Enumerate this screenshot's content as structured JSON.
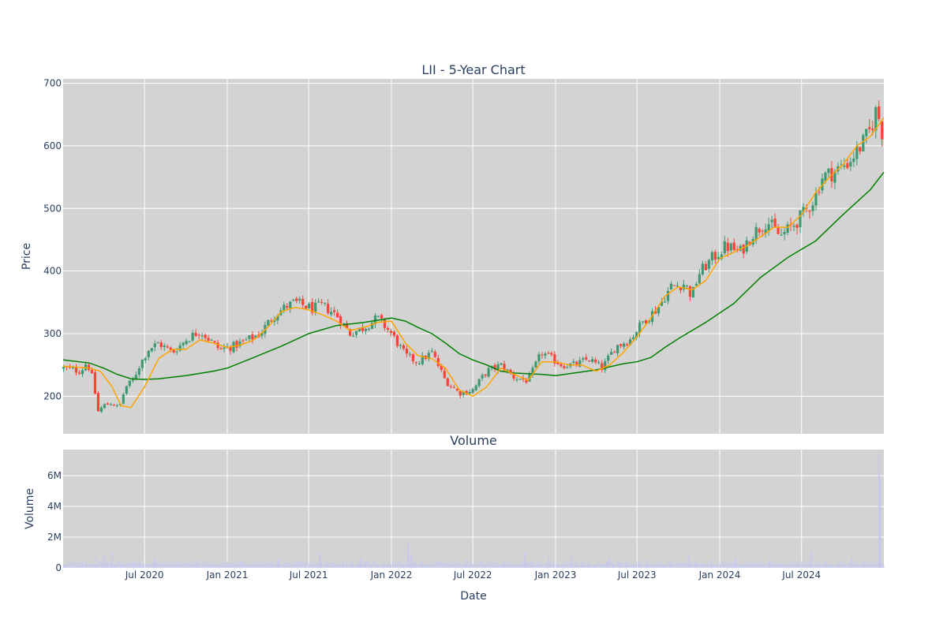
{
  "chart_data": [
    {
      "type": "candlestick",
      "title": "LII - 5-Year Chart",
      "ylabel": "Price",
      "ylim": [
        140,
        707
      ],
      "xlim": [
        "2020-01-02",
        "2024-12-31"
      ],
      "x_ticks": [
        "Jul 2020",
        "Jan 2021",
        "Jul 2021",
        "Jan 2022",
        "Jul 2022",
        "Jan 2023",
        "Jul 2023",
        "Jan 2024",
        "Jul 2024"
      ],
      "y_ticks": [
        200,
        300,
        400,
        500,
        600,
        700
      ],
      "grid": true,
      "colors": {
        "up": "#3d9970",
        "down": "#ff4136",
        "ma_short": "#ffa500",
        "ma_long": "#008000",
        "plot_bg": "#d3d3d3"
      },
      "close_path": {
        "dates": [
          "2020-01-02",
          "2020-02-10",
          "2020-02-24",
          "2020-03-09",
          "2020-03-19",
          "2020-04-01",
          "2020-04-20",
          "2020-05-05",
          "2020-05-20",
          "2020-06-05",
          "2020-06-20",
          "2020-07-10",
          "2020-08-01",
          "2020-09-01",
          "2020-10-01",
          "2020-11-01",
          "2020-12-15",
          "2021-01-15",
          "2021-02-15",
          "2021-03-15",
          "2021-04-15",
          "2021-05-15",
          "2021-06-01",
          "2021-06-20",
          "2021-07-10",
          "2021-08-01",
          "2021-09-01",
          "2021-10-01",
          "2021-11-01",
          "2021-12-01",
          "2022-01-01",
          "2022-02-01",
          "2022-03-01",
          "2022-04-01",
          "2022-05-01",
          "2022-06-01",
          "2022-07-01",
          "2022-08-01",
          "2022-09-01",
          "2022-10-01",
          "2022-11-01",
          "2022-12-01",
          "2023-01-15",
          "2023-02-15",
          "2023-03-15",
          "2023-04-15",
          "2023-05-15",
          "2023-06-15",
          "2023-07-15",
          "2023-08-15",
          "2023-09-15",
          "2023-10-15",
          "2023-10-31",
          "2023-11-15",
          "2023-12-15",
          "2024-01-15",
          "2024-02-15",
          "2024-03-15",
          "2024-04-15",
          "2024-05-15",
          "2024-06-15",
          "2024-07-15",
          "2024-08-01",
          "2024-08-15",
          "2024-09-15",
          "2024-10-15",
          "2024-11-15",
          "2024-12-01",
          "2024-12-15",
          "2024-12-31"
        ],
        "close": [
          245,
          240,
          255,
          225,
          175,
          185,
          190,
          180,
          215,
          225,
          250,
          275,
          285,
          270,
          290,
          305,
          275,
          280,
          290,
          300,
          330,
          345,
          350,
          345,
          340,
          345,
          330,
          300,
          310,
          325,
          300,
          265,
          255,
          270,
          225,
          205,
          210,
          240,
          250,
          230,
          225,
          270,
          250,
          250,
          260,
          245,
          280,
          290,
          320,
          340,
          375,
          380,
          360,
          395,
          420,
          440,
          430,
          460,
          480,
          455,
          475,
          500,
          520,
          550,
          560,
          575,
          605,
          625,
          660,
          610
        ]
      },
      "ma_short": {
        "dates": [
          "2020-01-02",
          "2020-03-01",
          "2020-03-25",
          "2020-04-20",
          "2020-05-10",
          "2020-06-01",
          "2020-07-01",
          "2020-08-01",
          "2020-09-01",
          "2020-10-01",
          "2020-11-01",
          "2020-12-01",
          "2021-01-01",
          "2021-02-01",
          "2021-03-01",
          "2021-04-01",
          "2021-05-01",
          "2021-06-01",
          "2021-07-01",
          "2021-08-01",
          "2021-09-01",
          "2021-10-01",
          "2021-11-01",
          "2021-12-01",
          "2022-01-01",
          "2022-02-01",
          "2022-03-01",
          "2022-04-01",
          "2022-05-01",
          "2022-06-01",
          "2022-07-01",
          "2022-08-01",
          "2022-09-01",
          "2022-10-01",
          "2022-11-01",
          "2022-12-01",
          "2023-01-01",
          "2023-02-01",
          "2023-03-01",
          "2023-04-01",
          "2023-05-01",
          "2023-06-01",
          "2023-07-01",
          "2023-08-01",
          "2023-09-01",
          "2023-10-01",
          "2023-11-01",
          "2023-12-01",
          "2024-01-01",
          "2024-02-01",
          "2024-03-01",
          "2024-04-01",
          "2024-05-01",
          "2024-06-01",
          "2024-07-01",
          "2024-08-01",
          "2024-09-01",
          "2024-10-01",
          "2024-11-01",
          "2024-12-01",
          "2024-12-31"
        ],
        "values": [
          248,
          245,
          240,
          215,
          185,
          182,
          215,
          260,
          275,
          275,
          290,
          285,
          278,
          282,
          290,
          310,
          335,
          342,
          338,
          330,
          320,
          305,
          310,
          318,
          320,
          285,
          265,
          260,
          245,
          210,
          200,
          215,
          245,
          235,
          225,
          255,
          255,
          250,
          250,
          240,
          250,
          270,
          295,
          325,
          360,
          375,
          370,
          385,
          420,
          430,
          440,
          455,
          470,
          470,
          490,
          525,
          550,
          570,
          600,
          615,
          645
        ]
      },
      "ma_long": {
        "dates": [
          "2020-01-02",
          "2020-03-01",
          "2020-04-01",
          "2020-05-01",
          "2020-06-01",
          "2020-07-01",
          "2020-08-01",
          "2020-10-01",
          "2020-12-01",
          "2021-01-01",
          "2021-03-01",
          "2021-05-01",
          "2021-07-01",
          "2021-09-01",
          "2021-11-01",
          "2022-01-01",
          "2022-02-01",
          "2022-03-01",
          "2022-04-01",
          "2022-05-01",
          "2022-06-01",
          "2022-07-01",
          "2022-08-01",
          "2022-09-01",
          "2022-10-01",
          "2022-11-01",
          "2022-12-01",
          "2023-01-01",
          "2023-02-01",
          "2023-04-01",
          "2023-06-01",
          "2023-07-01",
          "2023-08-01",
          "2023-09-01",
          "2023-10-01",
          "2023-12-01",
          "2024-02-01",
          "2024-04-01",
          "2024-06-01",
          "2024-08-01",
          "2024-10-01",
          "2024-12-01",
          "2024-12-31"
        ],
        "values": [
          258,
          253,
          245,
          235,
          228,
          227,
          228,
          233,
          240,
          245,
          262,
          280,
          300,
          313,
          318,
          325,
          320,
          310,
          300,
          285,
          268,
          258,
          250,
          240,
          237,
          236,
          235,
          233,
          236,
          242,
          252,
          255,
          262,
          278,
          292,
          318,
          348,
          390,
          422,
          448,
          490,
          530,
          558
        ]
      }
    },
    {
      "type": "bar",
      "title": "Volume",
      "xlabel": "Date",
      "ylabel": "Volume",
      "ylim": [
        0,
        7700000
      ],
      "x_ticks": [
        "Jul 2020",
        "Jan 2021",
        "Jul 2021",
        "Jan 2022",
        "Jul 2022",
        "Jan 2023",
        "Jul 2023",
        "Jan 2024",
        "Jul 2024"
      ],
      "y_ticks": [
        {
          "value": 0,
          "label": "0"
        },
        {
          "value": 2000000,
          "label": "2M"
        },
        {
          "value": 4000000,
          "label": "4M"
        },
        {
          "value": 6000000,
          "label": "6M"
        }
      ],
      "bar_color": "#c4c8f0",
      "base_volume": 300000,
      "spikes": [
        {
          "date": "2020-03-16",
          "value": 700000
        },
        {
          "date": "2020-04-02",
          "value": 850000
        },
        {
          "date": "2020-04-20",
          "value": 1050000
        },
        {
          "date": "2020-06-19",
          "value": 500000
        },
        {
          "date": "2020-07-23",
          "value": 650000
        },
        {
          "date": "2020-10-26",
          "value": 550000
        },
        {
          "date": "2021-04-26",
          "value": 600000
        },
        {
          "date": "2021-07-26",
          "value": 1000000
        },
        {
          "date": "2021-10-25",
          "value": 650000
        },
        {
          "date": "2022-02-07",
          "value": 1600000
        },
        {
          "date": "2022-02-14",
          "value": 900000
        },
        {
          "date": "2022-06-17",
          "value": 550000
        },
        {
          "date": "2022-10-24",
          "value": 1000000
        },
        {
          "date": "2022-12-16",
          "value": 700000
        },
        {
          "date": "2023-02-06",
          "value": 750000
        },
        {
          "date": "2023-05-01",
          "value": 650000
        },
        {
          "date": "2023-07-24",
          "value": 550000
        },
        {
          "date": "2023-10-23",
          "value": 700000
        },
        {
          "date": "2023-12-15",
          "value": 550000
        },
        {
          "date": "2024-02-05",
          "value": 650000
        },
        {
          "date": "2024-04-22",
          "value": 600000
        },
        {
          "date": "2024-07-22",
          "value": 1100000
        },
        {
          "date": "2024-10-21",
          "value": 650000
        },
        {
          "date": "2024-12-20",
          "value": 7500000
        },
        {
          "date": "2024-12-23",
          "value": 5800000
        }
      ]
    }
  ]
}
